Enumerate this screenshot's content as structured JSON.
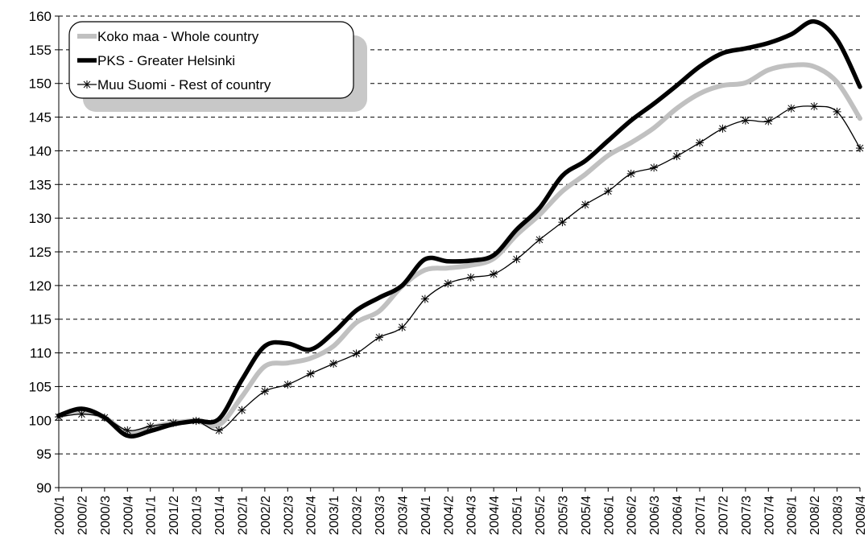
{
  "chart_data": {
    "type": "line",
    "title": "",
    "xlabel": "",
    "ylabel": "",
    "ylim": [
      90,
      160
    ],
    "yticks": [
      90,
      95,
      100,
      105,
      110,
      115,
      120,
      125,
      130,
      135,
      140,
      145,
      150,
      155,
      160
    ],
    "grid": "horizontal-dashed",
    "legend_position": "top-left",
    "categories": [
      "2000/1",
      "2000/2",
      "2000/3",
      "2000/4",
      "2001/1",
      "2001/2",
      "2001/3",
      "2001/4",
      "2002/1",
      "2002/2",
      "2002/3",
      "2002/4",
      "2003/1",
      "2003/2",
      "2003/3",
      "2003/4",
      "2004/1",
      "2004/2",
      "2004/3",
      "2004/4",
      "2005/1",
      "2005/2",
      "2005/3",
      "2005/4",
      "2006/1",
      "2006/2",
      "2006/3",
      "2006/4",
      "2007/1",
      "2007/2",
      "2007/3",
      "2007/4",
      "2008/1",
      "2008/2",
      "2008/3",
      "2008/4"
    ],
    "series": [
      {
        "name": "Koko maa - Whole country",
        "color": "#c0c0c0",
        "style": "thick-gray",
        "values": [
          100.6,
          101.3,
          100.4,
          98.2,
          98.9,
          99.6,
          99.9,
          99.3,
          103.5,
          108.0,
          108.5,
          109.2,
          111.0,
          114.5,
          116.2,
          119.9,
          122.3,
          122.6,
          123.0,
          124.0,
          127.5,
          130.5,
          134.0,
          136.5,
          139.3,
          141.2,
          143.4,
          146.3,
          148.5,
          149.7,
          150.1,
          152.0,
          152.7,
          152.5,
          150.2,
          144.8
        ]
      },
      {
        "name": "PKS - Greater Helsinki",
        "color": "#000000",
        "style": "thick-black",
        "values": [
          100.7,
          101.7,
          100.4,
          97.7,
          98.4,
          99.4,
          99.9,
          100.2,
          106.0,
          111.0,
          111.4,
          110.5,
          113.0,
          116.3,
          118.2,
          120.0,
          123.9,
          123.6,
          123.7,
          124.5,
          128.3,
          131.5,
          136.3,
          138.5,
          141.5,
          144.5,
          147.0,
          149.7,
          152.5,
          154.5,
          155.2,
          156.0,
          157.3,
          159.2,
          156.5,
          149.5
        ]
      },
      {
        "name": "Muu Suomi - Rest of country",
        "color": "#000000",
        "style": "thin-star",
        "values": [
          100.5,
          100.9,
          100.4,
          98.5,
          99.1,
          99.6,
          99.9,
          98.5,
          101.5,
          104.3,
          105.3,
          106.9,
          108.4,
          109.9,
          112.3,
          113.8,
          118.0,
          120.3,
          121.2,
          121.7,
          123.9,
          126.8,
          129.4,
          132.0,
          134.0,
          136.6,
          137.5,
          139.2,
          141.2,
          143.3,
          144.5,
          144.4,
          146.3,
          146.6,
          145.8,
          140.4
        ]
      }
    ]
  }
}
